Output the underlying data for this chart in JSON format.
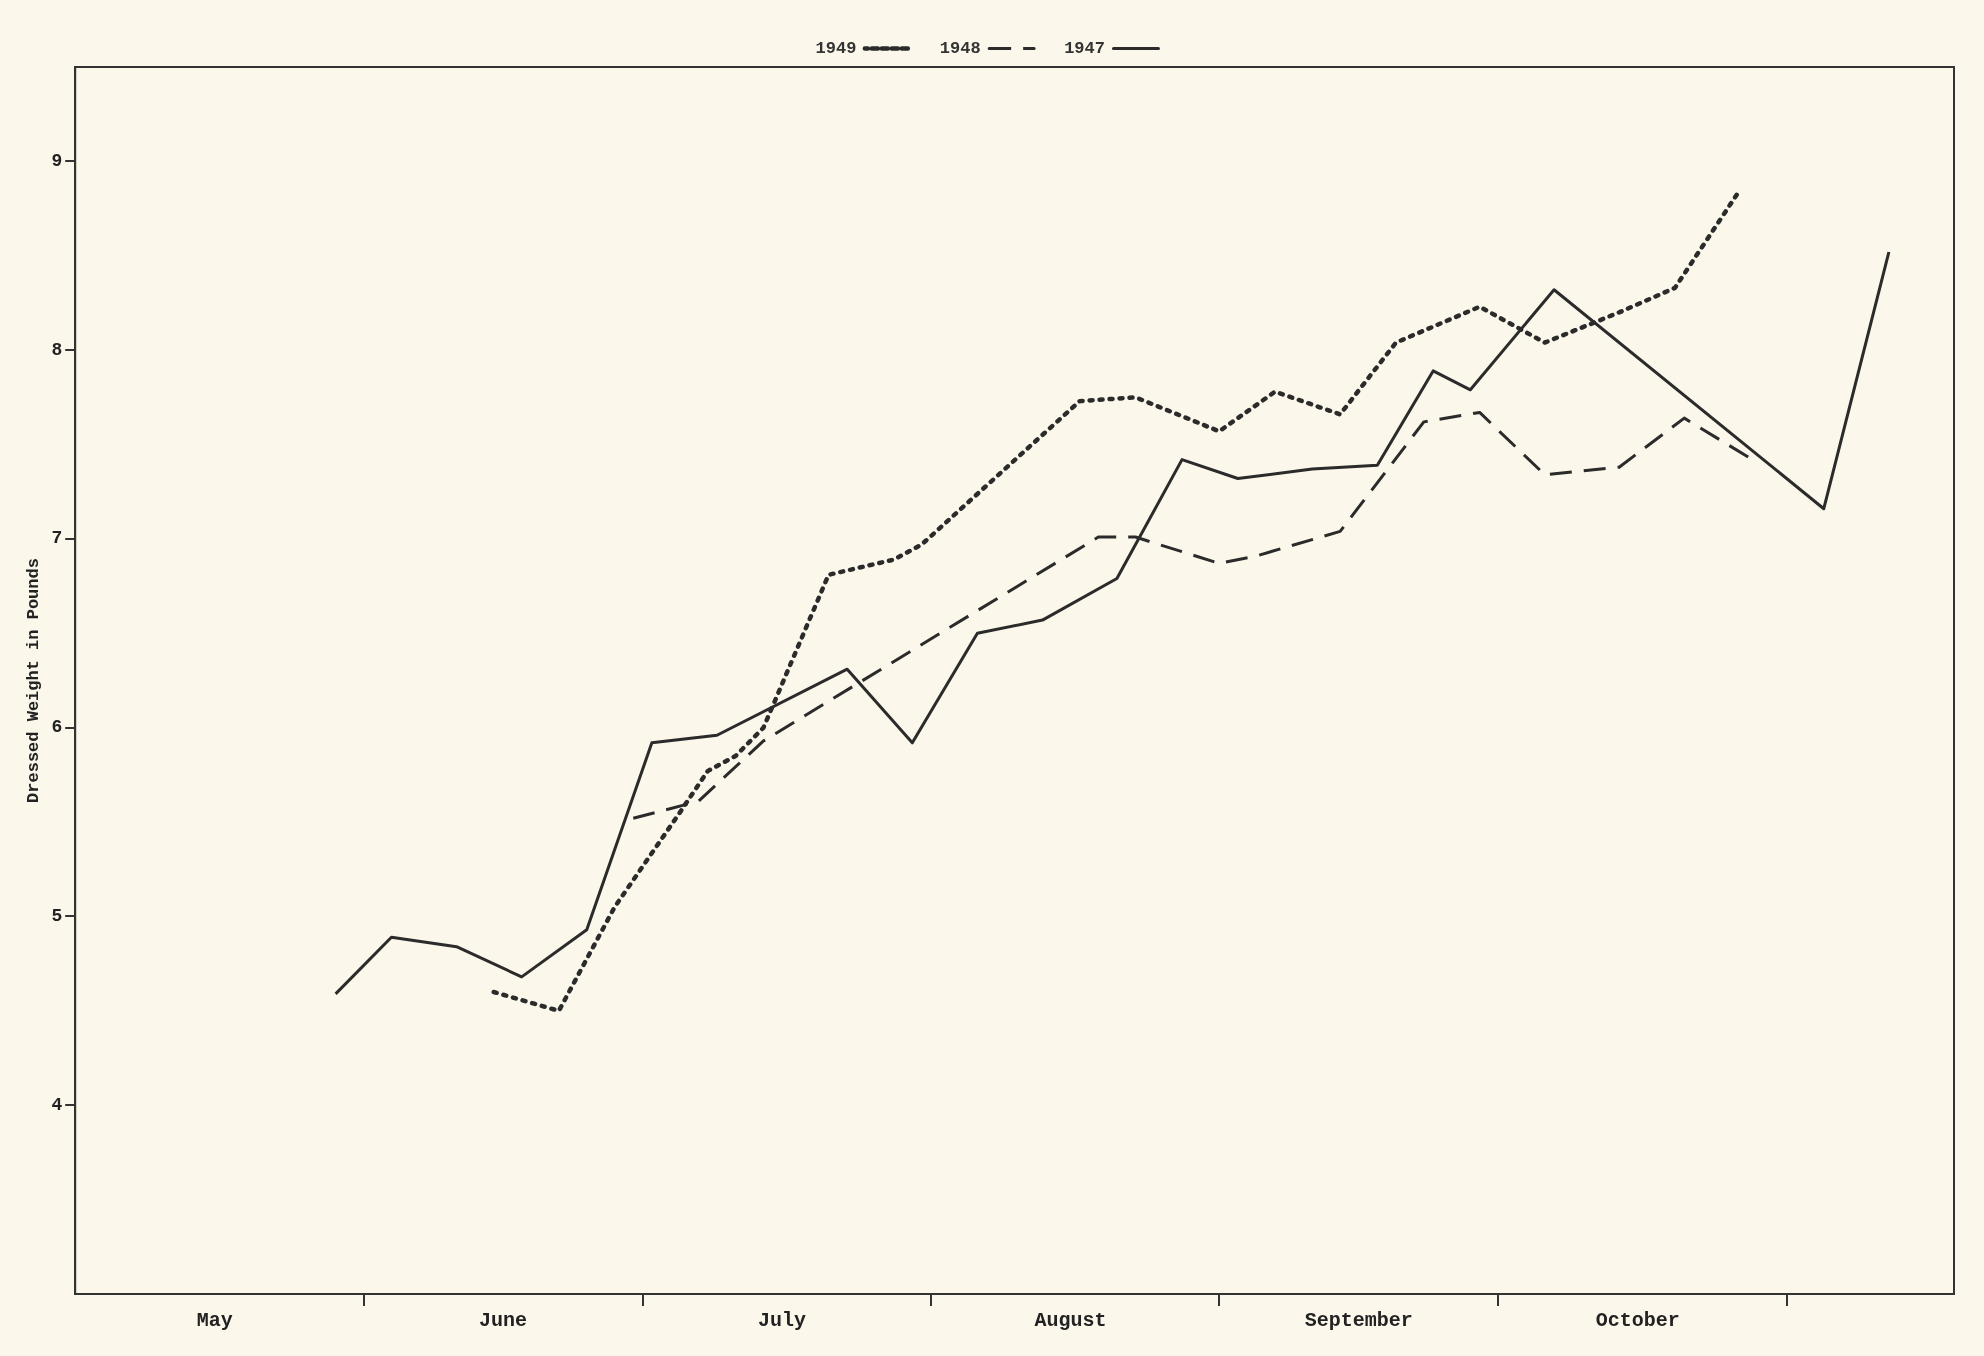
{
  "chart_data": {
    "type": "line",
    "ylabel": "Dressed Weight in Pounds",
    "xlim": [
      "--05-01",
      "--11-19"
    ],
    "ylim": [
      3,
      9.5
    ],
    "xticks": [
      {
        "value": "--05-16",
        "label": "May"
      },
      {
        "value": "--06-01",
        "label": null
      },
      {
        "value": "--06-16",
        "label": "June"
      },
      {
        "value": "--07-01",
        "label": null
      },
      {
        "value": "--07-16",
        "label": "July"
      },
      {
        "value": "--08-01",
        "label": null
      },
      {
        "value": "--08-16",
        "label": "August"
      },
      {
        "value": "--09-01",
        "label": null
      },
      {
        "value": "--09-16",
        "label": "September"
      },
      {
        "value": "--10-01",
        "label": null
      },
      {
        "value": "--10-16",
        "label": "October"
      },
      {
        "value": "--11-01",
        "label": null
      }
    ],
    "yticks": [
      4,
      5,
      6,
      7,
      8,
      9
    ],
    "grid": false,
    "legend": "top",
    "marker": "none",
    "series": [
      {
        "name": "1947",
        "color": "#2b2b2b",
        "line_style": "solid",
        "x": [
          "--05-29",
          "--06-04",
          "--06-11",
          "--06-18",
          "--06-25",
          "--07-02",
          "--07-09",
          "--07-23",
          "--07-30",
          "--08-06",
          "--08-13",
          "--08-21",
          "--08-28",
          "--09-03",
          "--09-11",
          "--09-18",
          "--09-24",
          "--09-28",
          "--10-07",
          "--11-05",
          "--11-12"
        ],
        "values": [
          4.59,
          4.89,
          4.84,
          4.68,
          4.93,
          5.92,
          5.96,
          6.31,
          5.92,
          6.5,
          6.57,
          6.79,
          7.42,
          7.32,
          7.37,
          7.39,
          7.89,
          7.79,
          8.32,
          7.16,
          8.52
        ]
      },
      {
        "name": "1948",
        "color": "#2b2b2b",
        "line_style": "dashed",
        "x": [
          "--06-30",
          "--07-07",
          "--07-14",
          "--08-19",
          "--08-23",
          "--09-01",
          "--09-05",
          "--09-14",
          "--09-23",
          "--09-29",
          "--10-06",
          "--10-14",
          "--10-21",
          "--10-28"
        ],
        "values": [
          5.52,
          5.61,
          5.93,
          7.01,
          7.01,
          6.87,
          6.91,
          7.04,
          7.62,
          7.67,
          7.34,
          7.38,
          7.64,
          7.43
        ]
      },
      {
        "name": "1949",
        "color": "#2b2b2b",
        "line_style": "dotted",
        "x": [
          "--06-15",
          "--06-22",
          "--06-28",
          "--07-05",
          "--07-08",
          "--07-11",
          "--07-14",
          "--07-21",
          "--07-28",
          "--07-31",
          "--08-17",
          "--08-23",
          "--09-01",
          "--09-07",
          "--09-14",
          "--09-20",
          "--09-29",
          "--10-06",
          "--10-14",
          "--10-20",
          "--10-27"
        ],
        "values": [
          4.6,
          4.5,
          5.05,
          5.55,
          5.77,
          5.85,
          6.0,
          6.81,
          6.89,
          6.97,
          7.73,
          7.75,
          7.57,
          7.78,
          7.66,
          8.04,
          8.23,
          8.04,
          8.2,
          8.33,
          8.85
        ]
      }
    ]
  }
}
